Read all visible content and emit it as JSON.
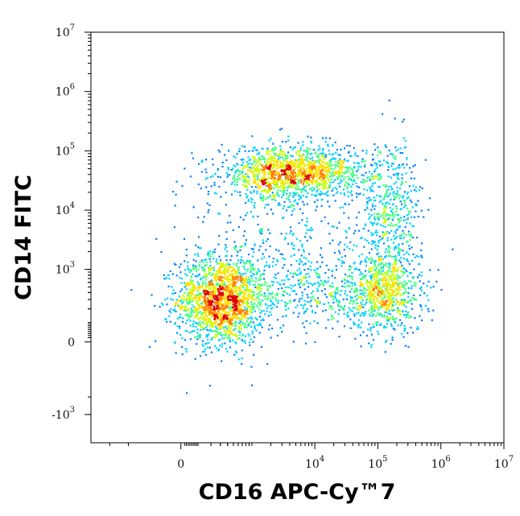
{
  "chart_data": {
    "type": "scatter",
    "style": "density-colored flow cytometry dot plot",
    "xlabel": "CD16 APC-Cy™7",
    "ylabel": "CD14 FITC",
    "x_scale": "biexponential",
    "y_scale": "biexponential",
    "x_range": [
      -2000,
      10000000
    ],
    "y_range": [
      -3000,
      10000000
    ],
    "x_ticks": [
      {
        "value": 0,
        "base": "0",
        "exp": ""
      },
      {
        "value": 10000,
        "base": "10",
        "exp": "4"
      },
      {
        "value": 100000,
        "base": "10",
        "exp": "5"
      },
      {
        "value": 1000000,
        "base": "10",
        "exp": "6"
      },
      {
        "value": 10000000,
        "base": "10",
        "exp": "7"
      }
    ],
    "y_ticks": [
      {
        "value": 10000000,
        "base": "10",
        "exp": "7"
      },
      {
        "value": 1000000,
        "base": "10",
        "exp": "6"
      },
      {
        "value": 100000,
        "base": "10",
        "exp": "5"
      },
      {
        "value": 10000,
        "base": "10",
        "exp": "4"
      },
      {
        "value": 1000,
        "base": "10",
        "exp": "3"
      },
      {
        "value": 0,
        "base": "0",
        "exp": ""
      },
      {
        "value": -1000,
        "base": "-10",
        "exp": "3"
      }
    ],
    "grid": false,
    "legend": "none",
    "density_colors": [
      "#0000c8",
      "#0080ff",
      "#00d0ff",
      "#40ff80",
      "#c8ff00",
      "#ffe000",
      "#ff8000",
      "#e00000"
    ],
    "populations": [
      {
        "x": 300,
        "y": 300,
        "spread_x": 0.35,
        "spread_y": 0.35,
        "weight": 0.34
      },
      {
        "x": 120000,
        "y": 400,
        "spread_x": 0.3,
        "spread_y": 0.32,
        "weight": 0.14
      },
      {
        "x": 2500,
        "y": 42000,
        "spread_x": 0.45,
        "spread_y": 0.2,
        "weight": 0.18
      },
      {
        "x": 15000,
        "y": 45000,
        "spread_x": 0.4,
        "spread_y": 0.2,
        "weight": 0.1
      },
      {
        "x": 160000,
        "y": 8000,
        "spread_x": 0.25,
        "spread_y": 0.6,
        "weight": 0.1
      },
      {
        "x": 8000,
        "y": 450,
        "spread_x": 0.6,
        "spread_y": 0.3,
        "weight": 0.08
      },
      {
        "x": 3000,
        "y": 5000,
        "spread_x": 0.7,
        "spread_y": 0.7,
        "weight": 0.06
      }
    ]
  }
}
